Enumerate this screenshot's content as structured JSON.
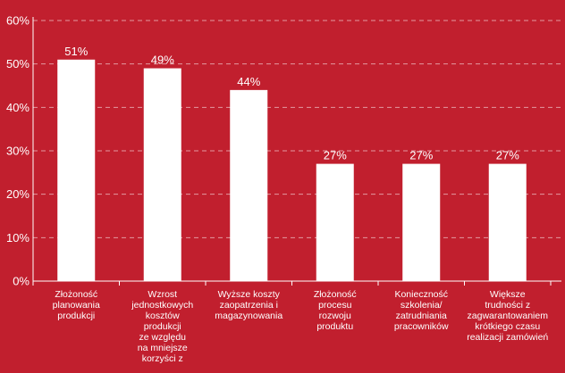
{
  "chart_data": {
    "type": "bar",
    "title": "",
    "xlabel": "",
    "ylabel": "",
    "ylim": [
      0,
      60
    ],
    "y_ticks": [
      "0%",
      "10%",
      "20%",
      "30%",
      "40%",
      "50%",
      "60%"
    ],
    "y_tick_values": [
      0,
      10,
      20,
      30,
      40,
      50,
      60
    ],
    "grid": true,
    "categories": [
      [
        "Złożoność",
        "planowania",
        "produkcji"
      ],
      [
        "Wzrost",
        "jednostkowych",
        "kosztów",
        "produkcji",
        "ze względu",
        "na mniejsze",
        "korzyści z"
      ],
      [
        "Wyższe koszty",
        "zaopatrzenia i",
        "magazynowania"
      ],
      [
        "Złożoność",
        "procesu",
        "rozwoju",
        "produktu"
      ],
      [
        "Konieczność",
        "szkolenia/",
        "zatrudniania",
        "pracowników"
      ],
      [
        "Większe",
        "trudności z",
        "zagwarantowaniem",
        "krótkiego czasu",
        "realizacji zamówień"
      ]
    ],
    "values": [
      51,
      49,
      44,
      27,
      27,
      27
    ],
    "value_labels": [
      "51%",
      "49%",
      "44%",
      "27%",
      "27%",
      "27%"
    ]
  },
  "colors": {
    "background": "#c11f2e",
    "bar": "#ffffff",
    "text": "#ffffff",
    "grid": "#ffffff"
  }
}
